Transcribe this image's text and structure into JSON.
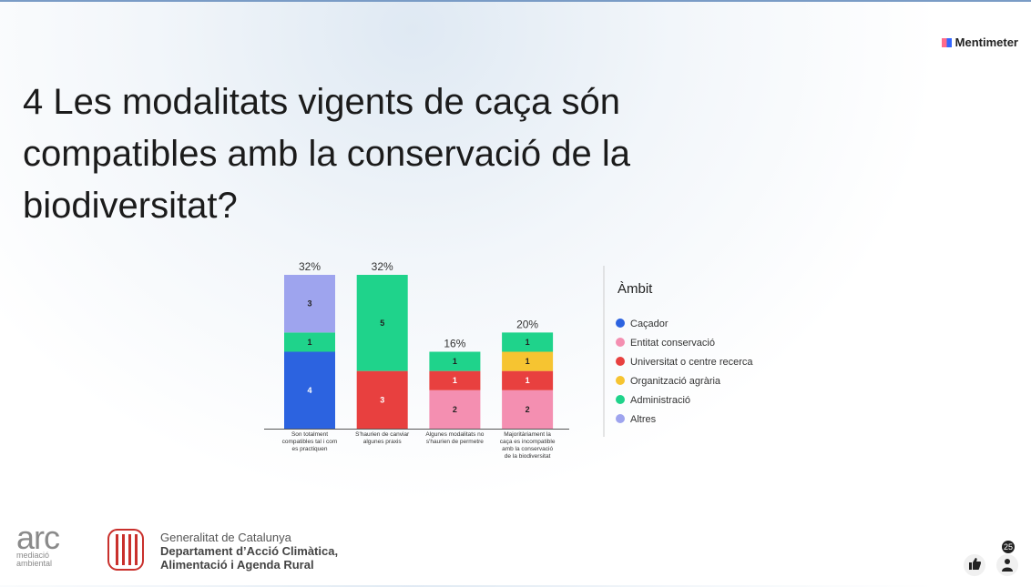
{
  "brand": "Mentimeter",
  "title_lines": [
    "4 Les modalitats vigents de caça són",
    "compatibles amb la conservació de la",
    "biodiversitat?"
  ],
  "chart_data": {
    "type": "stacked_bar",
    "categories": [
      "Son totalment compatibles tal i com es practiquen",
      "S'haurien de canviar algunes praxis",
      "Algunes modalitats no s'haurien de permetre",
      "Majoritàriament la caça es incompatible amb la conservació de la biodiversitat"
    ],
    "percent_labels": [
      "32%",
      "32%",
      "16%",
      "20%"
    ],
    "legend_title": "Àmbit",
    "series": [
      {
        "name": "Caçador",
        "color": "#2c63e0",
        "values": [
          4,
          0,
          0,
          0
        ]
      },
      {
        "name": "Entitat conservació",
        "color": "#f48fb1",
        "values": [
          0,
          0,
          2,
          2
        ]
      },
      {
        "name": "Universitat o centre recerca",
        "color": "#e8403f",
        "values": [
          0,
          3,
          1,
          1
        ]
      },
      {
        "name": "Organització agrària",
        "color": "#f6c431",
        "values": [
          0,
          0,
          0,
          1
        ]
      },
      {
        "name": "Administració",
        "color": "#1fd38b",
        "values": [
          1,
          5,
          1,
          1
        ]
      },
      {
        "name": "Altres",
        "color": "#9ea4ee",
        "values": [
          3,
          0,
          0,
          0
        ]
      }
    ]
  },
  "footer": {
    "arc_logo": "arc",
    "arc_sub": [
      "mediació",
      "ambiental"
    ],
    "gov_lines": [
      "Generalitat de Catalunya",
      "Departament d’Acció Climàtica,",
      "Alimentació i Agenda Rural"
    ]
  },
  "participants": 25
}
